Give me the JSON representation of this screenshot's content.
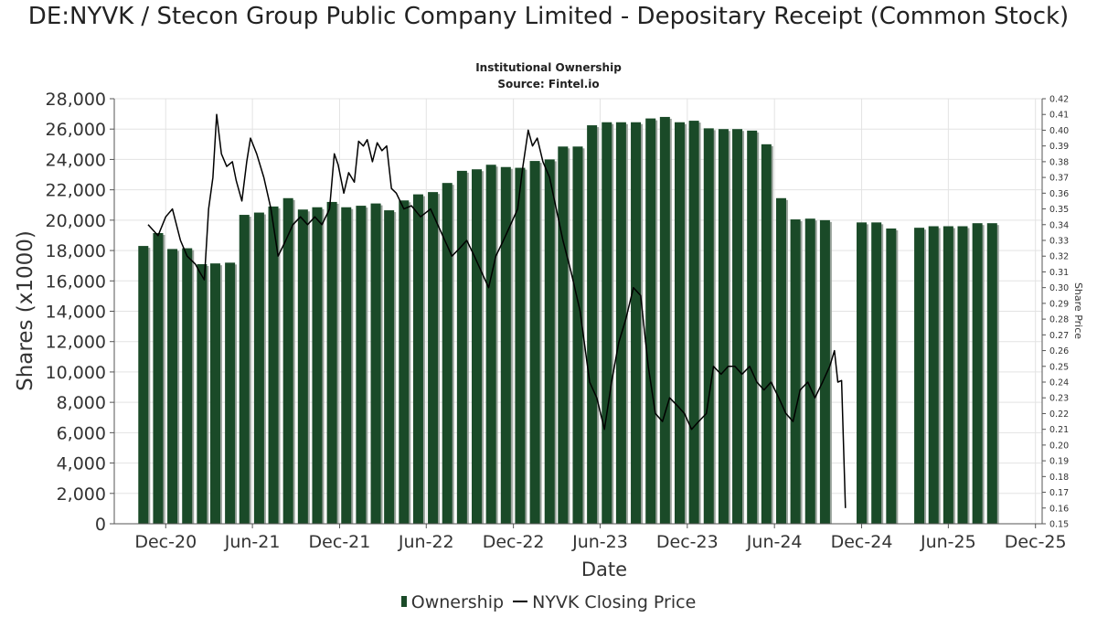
{
  "chart_data": {
    "type": "bar",
    "title": "DE:NYVK / Stecon Group Public Company Limited - Depositary Receipt (Common Stock)",
    "subtitle_lines": [
      "Institutional Ownership",
      "Source: Fintel.io"
    ],
    "xlabel": "Date",
    "ylabel": "Shares (x1000)",
    "y2label": "Share Price",
    "ylim": [
      0,
      28000
    ],
    "y2lim": [
      0.15,
      0.42
    ],
    "xlim": [
      "2020-08-15",
      "2025-12-15"
    ],
    "grid": true,
    "legend_position": "bottom",
    "x_tick_labels": [
      "Dec-20",
      "Jun-21",
      "Dec-21",
      "Jun-22",
      "Dec-22",
      "Jun-23",
      "Dec-23",
      "Jun-24",
      "Dec-24",
      "Jun-25",
      "Dec-25"
    ],
    "x_tick_dates": [
      "2020-12-01",
      "2021-06-01",
      "2021-12-01",
      "2022-06-01",
      "2022-12-01",
      "2023-06-01",
      "2023-12-01",
      "2024-06-01",
      "2024-12-01",
      "2025-06-01",
      "2025-12-01"
    ],
    "y_tick_labels": [
      "0",
      "2,000",
      "4,000",
      "6,000",
      "8,000",
      "10,000",
      "12,000",
      "14,000",
      "16,000",
      "18,000",
      "20,000",
      "22,000",
      "24,000",
      "26,000",
      "28,000"
    ],
    "y2_tick_labels": [
      "0.15",
      "0.16",
      "0.17",
      "0.18",
      "0.19",
      "0.20",
      "0.21",
      "0.22",
      "0.23",
      "0.24",
      "0.25",
      "0.26",
      "0.27",
      "0.28",
      "0.29",
      "0.30",
      "0.31",
      "0.32",
      "0.33",
      "0.34",
      "0.35",
      "0.36",
      "0.37",
      "0.38",
      "0.39",
      "0.40",
      "0.41",
      "0.42"
    ],
    "series": [
      {
        "name": "Ownership",
        "kind": "bar",
        "color": "#1a4a28",
        "points": [
          [
            "2020-10-15",
            18300
          ],
          [
            "2020-11-15",
            19150
          ],
          [
            "2020-12-15",
            18100
          ],
          [
            "2021-01-15",
            18150
          ],
          [
            "2021-02-15",
            17100
          ],
          [
            "2021-03-15",
            17150
          ],
          [
            "2021-04-15",
            17200
          ],
          [
            "2021-05-15",
            20350
          ],
          [
            "2021-06-15",
            20500
          ],
          [
            "2021-07-15",
            20900
          ],
          [
            "2021-08-15",
            21450
          ],
          [
            "2021-09-15",
            20700
          ],
          [
            "2021-10-15",
            20850
          ],
          [
            "2021-11-15",
            21200
          ],
          [
            "2021-12-15",
            20850
          ],
          [
            "2022-01-15",
            20950
          ],
          [
            "2022-02-15",
            21100
          ],
          [
            "2022-03-15",
            20650
          ],
          [
            "2022-04-15",
            21300
          ],
          [
            "2022-05-15",
            21700
          ],
          [
            "2022-06-15",
            21850
          ],
          [
            "2022-07-15",
            22450
          ],
          [
            "2022-08-15",
            23250
          ],
          [
            "2022-09-15",
            23350
          ],
          [
            "2022-10-15",
            23650
          ],
          [
            "2022-11-15",
            23500
          ],
          [
            "2022-12-15",
            23450
          ],
          [
            "2023-01-15",
            23900
          ],
          [
            "2023-02-15",
            24000
          ],
          [
            "2023-03-15",
            24850
          ],
          [
            "2023-04-15",
            24850
          ],
          [
            "2023-05-15",
            26250
          ],
          [
            "2023-06-15",
            26450
          ],
          [
            "2023-07-15",
            26450
          ],
          [
            "2023-08-15",
            26450
          ],
          [
            "2023-09-15",
            26700
          ],
          [
            "2023-10-15",
            26800
          ],
          [
            "2023-11-15",
            26450
          ],
          [
            "2023-12-15",
            26550
          ],
          [
            "2024-01-15",
            26050
          ],
          [
            "2024-02-15",
            26000
          ],
          [
            "2024-03-15",
            26000
          ],
          [
            "2024-04-15",
            25900
          ],
          [
            "2024-05-15",
            25000
          ],
          [
            "2024-06-15",
            21450
          ],
          [
            "2024-07-15",
            20050
          ],
          [
            "2024-08-15",
            20100
          ],
          [
            "2024-09-15",
            20000
          ],
          [
            "2024-12-01",
            19850
          ],
          [
            "2025-01-01",
            19850
          ],
          [
            "2025-02-01",
            19450
          ],
          [
            "2025-04-01",
            19500
          ],
          [
            "2025-05-01",
            19600
          ],
          [
            "2025-06-01",
            19600
          ],
          [
            "2025-07-01",
            19600
          ],
          [
            "2025-08-01",
            19800
          ],
          [
            "2025-09-01",
            19800
          ]
        ]
      },
      {
        "name": "NYVK Closing Price",
        "kind": "line",
        "color": "#000000",
        "points": [
          [
            "2020-10-25",
            0.34
          ],
          [
            "2020-11-15",
            0.333
          ],
          [
            "2020-12-01",
            0.345
          ],
          [
            "2020-12-15",
            0.35
          ],
          [
            "2021-01-01",
            0.33
          ],
          [
            "2021-01-15",
            0.32
          ],
          [
            "2021-02-01",
            0.315
          ],
          [
            "2021-02-10",
            0.31
          ],
          [
            "2021-02-20",
            0.305
          ],
          [
            "2021-03-01",
            0.35
          ],
          [
            "2021-03-10",
            0.37
          ],
          [
            "2021-03-18",
            0.41
          ],
          [
            "2021-03-28",
            0.385
          ],
          [
            "2021-04-08",
            0.377
          ],
          [
            "2021-04-20",
            0.38
          ],
          [
            "2021-04-28",
            0.368
          ],
          [
            "2021-05-10",
            0.355
          ],
          [
            "2021-05-20",
            0.38
          ],
          [
            "2021-05-28",
            0.395
          ],
          [
            "2021-06-10",
            0.385
          ],
          [
            "2021-06-25",
            0.37
          ],
          [
            "2021-07-10",
            0.35
          ],
          [
            "2021-07-25",
            0.32
          ],
          [
            "2021-08-10",
            0.33
          ],
          [
            "2021-08-25",
            0.34
          ],
          [
            "2021-09-10",
            0.345
          ],
          [
            "2021-09-25",
            0.34
          ],
          [
            "2021-10-10",
            0.345
          ],
          [
            "2021-10-25",
            0.34
          ],
          [
            "2021-11-10",
            0.35
          ],
          [
            "2021-11-20",
            0.385
          ],
          [
            "2021-11-28",
            0.378
          ],
          [
            "2021-12-10",
            0.36
          ],
          [
            "2021-12-20",
            0.373
          ],
          [
            "2022-01-01",
            0.367
          ],
          [
            "2022-01-10",
            0.393
          ],
          [
            "2022-01-20",
            0.39
          ],
          [
            "2022-01-28",
            0.394
          ],
          [
            "2022-02-08",
            0.38
          ],
          [
            "2022-02-18",
            0.392
          ],
          [
            "2022-02-28",
            0.387
          ],
          [
            "2022-03-10",
            0.39
          ],
          [
            "2022-03-20",
            0.363
          ],
          [
            "2022-03-30",
            0.36
          ],
          [
            "2022-04-15",
            0.35
          ],
          [
            "2022-05-01",
            0.352
          ],
          [
            "2022-05-20",
            0.345
          ],
          [
            "2022-06-10",
            0.35
          ],
          [
            "2022-06-25",
            0.34
          ],
          [
            "2022-07-10",
            0.33
          ],
          [
            "2022-07-25",
            0.32
          ],
          [
            "2022-08-10",
            0.325
          ],
          [
            "2022-08-25",
            0.33
          ],
          [
            "2022-09-10",
            0.32
          ],
          [
            "2022-09-25",
            0.31
          ],
          [
            "2022-10-10",
            0.3
          ],
          [
            "2022-10-25",
            0.32
          ],
          [
            "2022-11-10",
            0.33
          ],
          [
            "2022-11-25",
            0.34
          ],
          [
            "2022-12-10",
            0.35
          ],
          [
            "2022-12-20",
            0.375
          ],
          [
            "2023-01-01",
            0.4
          ],
          [
            "2023-01-10",
            0.39
          ],
          [
            "2023-01-20",
            0.395
          ],
          [
            "2023-02-01",
            0.38
          ],
          [
            "2023-02-15",
            0.37
          ],
          [
            "2023-03-01",
            0.35
          ],
          [
            "2023-03-15",
            0.33
          ],
          [
            "2023-04-01",
            0.31
          ],
          [
            "2023-04-20",
            0.285
          ],
          [
            "2023-05-10",
            0.24
          ],
          [
            "2023-05-25",
            0.23
          ],
          [
            "2023-06-10",
            0.21
          ],
          [
            "2023-06-25",
            0.24
          ],
          [
            "2023-07-10",
            0.265
          ],
          [
            "2023-07-25",
            0.28
          ],
          [
            "2023-08-10",
            0.3
          ],
          [
            "2023-08-25",
            0.295
          ],
          [
            "2023-09-10",
            0.25
          ],
          [
            "2023-09-25",
            0.22
          ],
          [
            "2023-10-10",
            0.215
          ],
          [
            "2023-10-25",
            0.23
          ],
          [
            "2023-11-10",
            0.225
          ],
          [
            "2023-11-25",
            0.22
          ],
          [
            "2023-12-10",
            0.21
          ],
          [
            "2023-12-25",
            0.215
          ],
          [
            "2024-01-10",
            0.22
          ],
          [
            "2024-01-25",
            0.25
          ],
          [
            "2024-02-10",
            0.245
          ],
          [
            "2024-02-25",
            0.25
          ],
          [
            "2024-03-10",
            0.25
          ],
          [
            "2024-03-25",
            0.245
          ],
          [
            "2024-04-10",
            0.25
          ],
          [
            "2024-04-25",
            0.24
          ],
          [
            "2024-05-10",
            0.235
          ],
          [
            "2024-05-25",
            0.24
          ],
          [
            "2024-06-10",
            0.23
          ],
          [
            "2024-06-25",
            0.22
          ],
          [
            "2024-07-10",
            0.215
          ],
          [
            "2024-07-25",
            0.235
          ],
          [
            "2024-08-10",
            0.24
          ],
          [
            "2024-08-25",
            0.23
          ],
          [
            "2024-09-10",
            0.24
          ],
          [
            "2024-09-25",
            0.25
          ],
          [
            "2024-10-05",
            0.26
          ],
          [
            "2024-10-12",
            0.24
          ],
          [
            "2024-10-20",
            0.241
          ],
          [
            "2024-10-28",
            0.16
          ]
        ]
      }
    ]
  }
}
